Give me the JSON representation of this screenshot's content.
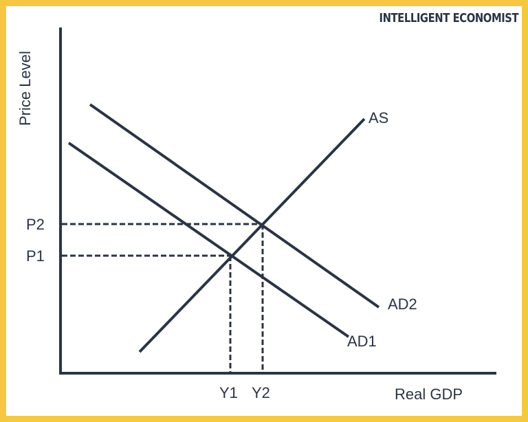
{
  "brand": {
    "text": "INTELLIGENT ECONOMIST"
  },
  "diagram": {
    "y_axis_label": "Price Level",
    "x_axis_label": "Real GDP",
    "curves": {
      "as": "AS",
      "ad1": "AD1",
      "ad2": "AD2"
    },
    "price_levels": {
      "p1": "P1",
      "p2": "P2"
    },
    "output_levels": {
      "y1": "Y1",
      "y2": "Y2"
    },
    "colors": {
      "border": "#f5c842",
      "ink": "#2b3443",
      "background": "#ffffff"
    }
  }
}
